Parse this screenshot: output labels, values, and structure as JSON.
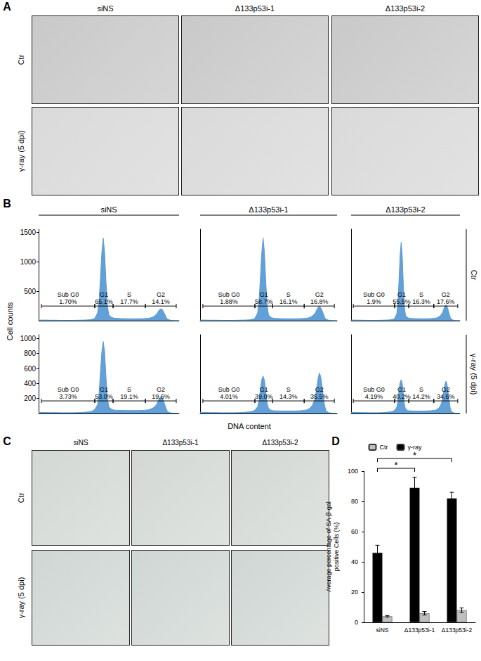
{
  "panel_labels": [
    "A",
    "B",
    "C",
    "D"
  ],
  "columns": [
    "siNS",
    "Δ133p53i-1",
    "Δ133p53i-2"
  ],
  "rows": [
    "Ctr",
    "γ-ray (5 dpi)"
  ],
  "histogram_axes": {
    "xlabel": "DNA content",
    "ylabel": "Cell counts"
  },
  "chart_data": [
    {
      "type": "area",
      "column": "siNS",
      "row": "Ctr",
      "color": "#5b9bd5",
      "xlim": [
        0,
        100
      ],
      "ylim": [
        0,
        1550
      ],
      "yticks": [
        500,
        1000,
        1500
      ],
      "tick_labels": "y",
      "x": [
        0,
        4,
        8,
        12,
        16,
        20,
        24,
        28,
        32,
        36,
        38,
        40,
        42,
        43,
        44,
        45,
        46,
        47,
        48,
        49,
        50,
        52,
        54,
        58,
        62,
        66,
        70,
        74,
        78,
        80,
        82,
        84,
        85,
        86,
        87,
        88,
        89,
        90,
        91,
        92,
        94,
        96,
        100
      ],
      "values": [
        10,
        10,
        8,
        8,
        6,
        6,
        6,
        8,
        10,
        14,
        20,
        40,
        130,
        320,
        720,
        1150,
        1400,
        1150,
        650,
        250,
        100,
        55,
        42,
        36,
        34,
        32,
        32,
        34,
        40,
        50,
        70,
        110,
        150,
        185,
        200,
        190,
        150,
        100,
        50,
        20,
        8,
        4,
        2
      ],
      "gates": {
        "names": [
          "Sub G0",
          "G1",
          "S",
          "G2"
        ],
        "ranges": [
          [
            2,
            40
          ],
          [
            40,
            53
          ],
          [
            53,
            76
          ],
          [
            76,
            98
          ]
        ],
        "values": [
          1.7,
          65.1,
          17.7,
          14.1
        ],
        "value_labels": [
          "1.70%",
          "65.1%",
          "17.7%",
          "14.1%"
        ]
      }
    },
    {
      "type": "area",
      "column": "Δ133p53i-1",
      "row": "Ctr",
      "color": "#5b9bd5",
      "xlim": [
        0,
        100
      ],
      "ylim": [
        0,
        1550
      ],
      "tick_labels": false,
      "x": [
        0,
        4,
        8,
        12,
        16,
        20,
        24,
        28,
        32,
        36,
        38,
        40,
        42,
        43,
        44,
        45,
        46,
        47,
        48,
        49,
        50,
        52,
        54,
        58,
        62,
        66,
        70,
        74,
        78,
        80,
        82,
        84,
        85,
        86,
        87,
        88,
        89,
        90,
        91,
        92,
        94,
        96,
        100
      ],
      "values": [
        10,
        10,
        8,
        8,
        6,
        6,
        6,
        8,
        10,
        14,
        20,
        40,
        130,
        320,
        720,
        1150,
        1400,
        1150,
        640,
        240,
        95,
        52,
        40,
        35,
        33,
        32,
        32,
        35,
        42,
        55,
        80,
        125,
        175,
        220,
        240,
        225,
        175,
        115,
        55,
        22,
        8,
        4,
        2
      ],
      "gates": {
        "names": [
          "Sub G0",
          "G1",
          "S",
          "G2"
        ],
        "ranges": [
          [
            2,
            40
          ],
          [
            40,
            53
          ],
          [
            53,
            76
          ],
          [
            76,
            98
          ]
        ],
        "values": [
          1.88,
          58.7,
          16.1,
          16.8
        ],
        "value_labels": [
          "1.88%",
          "58.7%",
          "16.1%",
          "16.8%"
        ]
      }
    },
    {
      "type": "area",
      "column": "Δ133p53i-2",
      "row": "Ctr",
      "color": "#5b9bd5",
      "xlim": [
        0,
        100
      ],
      "ylim": [
        0,
        1550
      ],
      "tick_labels": false,
      "x": [
        0,
        4,
        8,
        12,
        16,
        20,
        24,
        28,
        32,
        36,
        38,
        40,
        42,
        43,
        44,
        45,
        46,
        47,
        48,
        49,
        50,
        52,
        54,
        58,
        62,
        66,
        70,
        74,
        78,
        80,
        82,
        84,
        85,
        86,
        87,
        88,
        89,
        90,
        91,
        92,
        94,
        96,
        100
      ],
      "values": [
        10,
        10,
        8,
        8,
        6,
        6,
        6,
        8,
        10,
        14,
        20,
        38,
        120,
        300,
        680,
        1100,
        1330,
        1100,
        610,
        230,
        90,
        50,
        40,
        35,
        33,
        32,
        33,
        36,
        44,
        58,
        85,
        135,
        190,
        240,
        265,
        250,
        195,
        125,
        60,
        24,
        8,
        4,
        2
      ],
      "gates": {
        "names": [
          "Sub G0",
          "G1",
          "S",
          "G2"
        ],
        "ranges": [
          [
            2,
            40
          ],
          [
            40,
            53
          ],
          [
            53,
            76
          ],
          [
            76,
            98
          ]
        ],
        "values": [
          1.9,
          55.5,
          16.3,
          17.6
        ],
        "value_labels": [
          "1.9%",
          "55.5%",
          "16.3%",
          "17.6%"
        ]
      }
    },
    {
      "type": "area",
      "column": "siNS",
      "row": "γ-ray (5 dpi)",
      "color": "#5b9bd5",
      "xlim": [
        0,
        100
      ],
      "ylim": [
        0,
        1050
      ],
      "yticks": [
        200,
        400,
        600,
        800,
        1000
      ],
      "tick_labels": "y",
      "x": [
        0,
        4,
        8,
        12,
        16,
        20,
        24,
        28,
        32,
        36,
        38,
        40,
        42,
        43,
        44,
        45,
        46,
        47,
        48,
        49,
        50,
        52,
        54,
        58,
        62,
        66,
        70,
        74,
        78,
        80,
        82,
        84,
        85,
        86,
        87,
        88,
        89,
        90,
        91,
        92,
        94,
        96,
        100
      ],
      "values": [
        15,
        14,
        12,
        12,
        10,
        10,
        10,
        12,
        16,
        22,
        30,
        55,
        120,
        260,
        550,
        820,
        960,
        820,
        480,
        200,
        90,
        55,
        45,
        42,
        40,
        40,
        40,
        42,
        48,
        60,
        80,
        120,
        165,
        205,
        220,
        210,
        165,
        110,
        55,
        22,
        8,
        4,
        2
      ],
      "gates": {
        "names": [
          "Sub G0",
          "G1",
          "S",
          "G2"
        ],
        "ranges": [
          [
            2,
            40
          ],
          [
            40,
            53
          ],
          [
            53,
            76
          ],
          [
            76,
            98
          ]
        ],
        "values": [
          3.73,
          53.0,
          19.1,
          19.6
        ],
        "value_labels": [
          "3.73%",
          "53.0%",
          "19.1%",
          "19.6%"
        ]
      }
    },
    {
      "type": "area",
      "column": "Δ133p53i-1",
      "row": "γ-ray (5 dpi)",
      "color": "#5b9bd5",
      "xlim": [
        0,
        100
      ],
      "ylim": [
        0,
        1050
      ],
      "tick_labels": false,
      "x": [
        0,
        4,
        8,
        12,
        16,
        20,
        24,
        28,
        32,
        36,
        38,
        40,
        42,
        43,
        44,
        45,
        46,
        47,
        48,
        49,
        50,
        52,
        54,
        58,
        62,
        66,
        70,
        74,
        78,
        80,
        82,
        84,
        85,
        86,
        87,
        88,
        89,
        90,
        91,
        92,
        94,
        96,
        100
      ],
      "values": [
        15,
        14,
        12,
        12,
        10,
        10,
        10,
        12,
        16,
        22,
        28,
        45,
        90,
        170,
        320,
        450,
        500,
        440,
        280,
        130,
        65,
        42,
        36,
        34,
        33,
        33,
        34,
        38,
        48,
        70,
        110,
        200,
        320,
        450,
        540,
        500,
        370,
        220,
        100,
        35,
        10,
        4,
        2
      ],
      "gates": {
        "names": [
          "Sub G0",
          "G1",
          "S",
          "G2"
        ],
        "ranges": [
          [
            2,
            40
          ],
          [
            40,
            53
          ],
          [
            53,
            76
          ],
          [
            76,
            98
          ]
        ],
        "values": [
          4.01,
          39.0,
          14.3,
          35.5
        ],
        "value_labels": [
          "4.01%",
          "39.0%",
          "14.3%",
          "35.5%"
        ]
      }
    },
    {
      "type": "area",
      "column": "Δ133p53i-2",
      "row": "γ-ray (5 dpi)",
      "color": "#5b9bd5",
      "xlim": [
        0,
        100
      ],
      "ylim": [
        0,
        1050
      ],
      "tick_labels": false,
      "x": [
        0,
        4,
        8,
        12,
        16,
        20,
        24,
        28,
        32,
        36,
        38,
        40,
        42,
        43,
        44,
        45,
        46,
        47,
        48,
        49,
        50,
        52,
        54,
        58,
        62,
        66,
        70,
        74,
        78,
        80,
        82,
        84,
        85,
        86,
        87,
        88,
        89,
        90,
        91,
        92,
        94,
        96,
        100
      ],
      "values": [
        15,
        14,
        12,
        12,
        10,
        10,
        10,
        12,
        16,
        22,
        28,
        42,
        85,
        160,
        300,
        410,
        450,
        400,
        260,
        120,
        60,
        40,
        35,
        33,
        32,
        32,
        34,
        38,
        46,
        65,
        100,
        180,
        280,
        370,
        430,
        400,
        300,
        180,
        80,
        30,
        10,
        4,
        2
      ],
      "gates": {
        "names": [
          "Sub G0",
          "G1",
          "S",
          "G2"
        ],
        "ranges": [
          [
            2,
            40
          ],
          [
            40,
            53
          ],
          [
            53,
            76
          ],
          [
            76,
            98
          ]
        ],
        "values": [
          4.19,
          40.2,
          14.2,
          34.6
        ],
        "value_labels": [
          "4.19%",
          "40.2%",
          "14.2%",
          "34.6%"
        ]
      }
    },
    {
      "type": "bar",
      "categories": [
        "siNS",
        "Δ133p53i-1",
        "Δ133p53i-2"
      ],
      "series": [
        {
          "name": "γ-ray",
          "color": "#000000",
          "values": [
            46,
            89,
            82
          ],
          "errors": [
            5,
            7,
            4
          ]
        },
        {
          "name": "Ctr",
          "color": "#bfbfbf",
          "values": [
            4,
            6,
            8
          ],
          "errors": [
            0.5,
            1.2,
            1.5
          ]
        }
      ],
      "ylabel": "Average percentage of SA-β-gal\npositive Cells (%)",
      "ylim": [
        0,
        100
      ],
      "yticks": [
        0,
        20,
        40,
        60,
        80,
        100
      ],
      "legend": "top",
      "annotations": [
        {
          "from": "siNS",
          "to": "Δ133p53i-1",
          "text": "*"
        },
        {
          "from": "siNS",
          "to": "Δ133p53i-2",
          "text": "*"
        }
      ]
    }
  ]
}
